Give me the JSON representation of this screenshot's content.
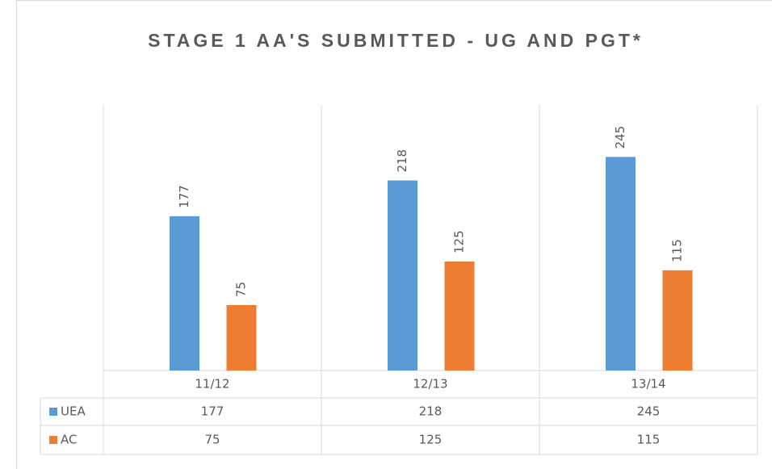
{
  "chart_data": {
    "type": "bar",
    "title": "STAGE 1 AA'S SUBMITTED - UG AND PGT*",
    "categories": [
      "11/12",
      "12/13",
      "13/14"
    ],
    "series": [
      {
        "name": "UEA",
        "color": "#5b9bd5",
        "values": [
          177,
          218,
          245
        ]
      },
      {
        "name": "AC",
        "color": "#ed7d31",
        "values": [
          75,
          125,
          115
        ]
      }
    ],
    "ylim": [
      0,
      300
    ]
  }
}
